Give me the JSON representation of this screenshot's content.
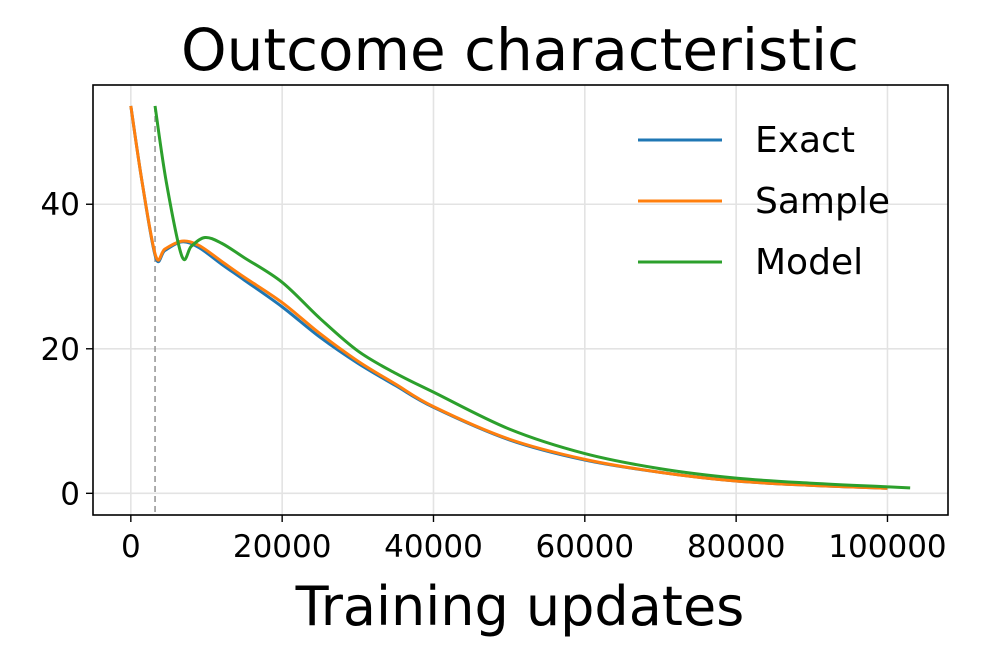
{
  "chart_data": {
    "type": "line",
    "title": "Outcome characteristic",
    "xlabel": "Training updates",
    "ylabel": "",
    "xlim": [
      -5000,
      108000
    ],
    "ylim": [
      -3,
      56.5
    ],
    "xticks": [
      0,
      20000,
      40000,
      60000,
      80000,
      100000
    ],
    "xtick_labels": [
      "0",
      "20000",
      "40000",
      "60000",
      "80000",
      "100000"
    ],
    "yticks": [
      0,
      20,
      40
    ],
    "ytick_labels": [
      "0",
      "20",
      "40"
    ],
    "grid": true,
    "legend_position": "top-right",
    "vline": {
      "x": 3200,
      "style": "dashed",
      "color": "#999999"
    },
    "series": [
      {
        "name": "Exact",
        "color": "#1f77b4",
        "x": [
          0,
          1500,
          3300,
          4500,
          6750,
          9000,
          12000,
          15000,
          20000,
          25000,
          30000,
          35000,
          40000,
          50000,
          60000,
          70000,
          80000,
          90000,
          100000
        ],
        "y": [
          53.6,
          43,
          32.6,
          33.6,
          34.8,
          34.0,
          31.7,
          29.5,
          25.8,
          21.6,
          18.0,
          14.9,
          11.9,
          7.4,
          4.6,
          2.9,
          1.7,
          1.1,
          0.7
        ]
      },
      {
        "name": "Sample",
        "color": "#ff7f0e",
        "x": [
          0,
          1500,
          3300,
          4500,
          6750,
          9000,
          12000,
          15000,
          20000,
          25000,
          30000,
          35000,
          40000,
          50000,
          60000,
          70000,
          80000,
          90000,
          100000
        ],
        "y": [
          53.6,
          43,
          32.8,
          33.8,
          34.9,
          34.3,
          32.1,
          29.9,
          26.4,
          22.1,
          18.3,
          15.1,
          12.0,
          7.5,
          4.7,
          2.9,
          1.7,
          1.1,
          0.7
        ]
      },
      {
        "name": "Model",
        "color": "#2ca02c",
        "x": [
          3200,
          4700,
          6750,
          8000,
          9800,
          12000,
          15000,
          20000,
          25000,
          30000,
          35000,
          40000,
          50000,
          60000,
          70000,
          80000,
          90000,
          100000,
          103000
        ],
        "y": [
          53.6,
          43,
          32.8,
          34.2,
          35.4,
          34.6,
          32.6,
          29.2,
          24.2,
          19.7,
          16.6,
          14.0,
          8.9,
          5.5,
          3.4,
          2.1,
          1.4,
          0.9,
          0.75
        ]
      }
    ]
  }
}
